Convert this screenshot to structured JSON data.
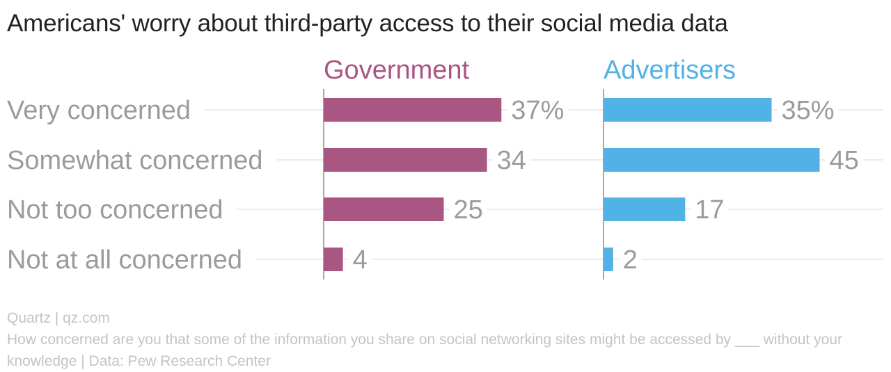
{
  "title": "Americans' worry about third-party access to their social media data",
  "chart_data": {
    "type": "bar",
    "orientation": "horizontal",
    "title": "Americans' worry about third-party access to their social media data",
    "categories": [
      "Very concerned",
      "Somewhat concerned",
      "Not too concerned",
      "Not at all concerned"
    ],
    "series": [
      {
        "name": "Government",
        "color": "#a95683",
        "values": [
          37,
          34,
          25,
          4
        ],
        "labels": [
          "37%",
          "34",
          "25",
          "4"
        ]
      },
      {
        "name": "Advertisers",
        "color": "#51b2e5",
        "values": [
          35,
          45,
          17,
          2
        ],
        "labels": [
          "35%",
          "45",
          "17",
          "2"
        ]
      }
    ],
    "xlim": [
      0,
      45
    ],
    "layout": "small multiples, one panel per series",
    "grid": true
  },
  "footer": {
    "source": "Quartz | qz.com",
    "note": "How concerned are you that some of the information you share on social networking sites might be accessed by ___ without your knowledge | Data: Pew Research Center"
  }
}
